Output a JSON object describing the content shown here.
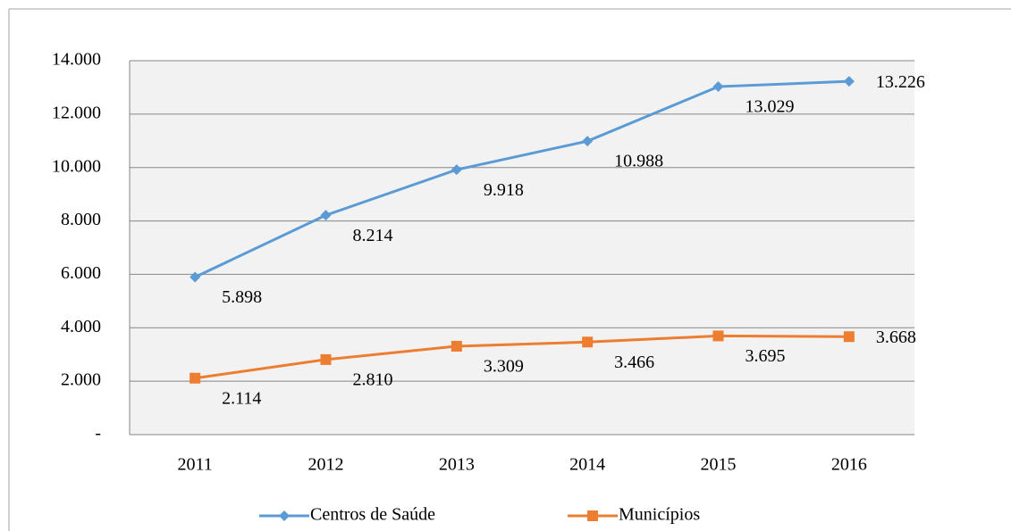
{
  "chart_data": {
    "type": "line",
    "categories": [
      "2011",
      "2012",
      "2013",
      "2014",
      "2015",
      "2016"
    ],
    "series": [
      {
        "name": "Centros de Saúde",
        "color": "#5b9bd5",
        "values": [
          5898,
          8214,
          9918,
          10988,
          13029,
          13226
        ],
        "value_labels": [
          "5.898",
          "8.214",
          "9.918",
          "10.988",
          "13.029",
          "13.226"
        ]
      },
      {
        "name": "Municípios",
        "color": "#ed7d31",
        "values": [
          2114,
          2810,
          3309,
          3466,
          3695,
          3668
        ],
        "value_labels": [
          "2.114",
          "2.810",
          "3.309",
          "3.466",
          "3.695",
          "3.668"
        ]
      }
    ],
    "ylim": [
      0,
      14000
    ],
    "yticks": [
      {
        "value": 0,
        "label": "-"
      },
      {
        "value": 2000,
        "label": "2.000"
      },
      {
        "value": 4000,
        "label": "4.000"
      },
      {
        "value": 6000,
        "label": "6.000"
      },
      {
        "value": 8000,
        "label": "8.000"
      },
      {
        "value": 10000,
        "label": "10.000"
      },
      {
        "value": 12000,
        "label": "12.000"
      },
      {
        "value": 14000,
        "label": "14.000"
      }
    ],
    "grid": true,
    "legend": "bottom"
  }
}
